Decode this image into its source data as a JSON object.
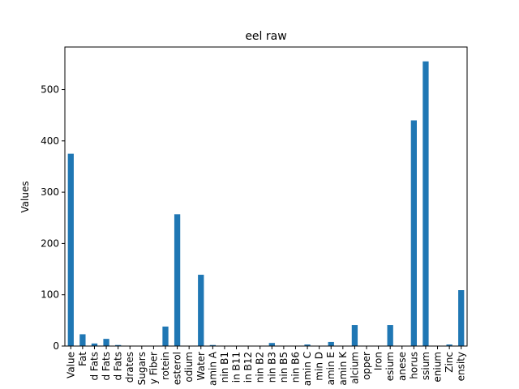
{
  "chart_data": {
    "type": "bar",
    "title": "eel raw",
    "xlabel": "",
    "ylabel": "Values",
    "ylim": [
      0,
      583
    ],
    "yticks": [
      0,
      100,
      200,
      300,
      400,
      500
    ],
    "grid": false,
    "bar_color": "#1f77b4",
    "tick_labels": [
      "Value",
      "Fat",
      "d Fats",
      "d Fats",
      "d Fats",
      "drates",
      "Sugars",
      "y Fiber",
      "rotein",
      "esterol",
      "odium",
      "Water",
      "amin A",
      "nin B1",
      "in B11",
      "in B12",
      "nin B2",
      "nin B3",
      "nin B5",
      "nin B6",
      "amin C",
      "min D",
      "amin E",
      "amin K",
      "alcium",
      "opper",
      "Iron",
      "esium",
      "anese",
      "horus",
      "ssium",
      "enium",
      "Zinc",
      "ensity"
    ],
    "values": [
      375,
      23,
      5,
      14,
      2,
      0,
      0,
      0,
      38,
      257,
      0,
      139,
      2,
      0,
      0,
      0,
      0,
      6,
      0,
      0,
      3,
      0,
      8,
      0,
      41,
      0,
      0,
      41,
      0,
      440,
      555,
      0,
      3,
      109
    ]
  }
}
